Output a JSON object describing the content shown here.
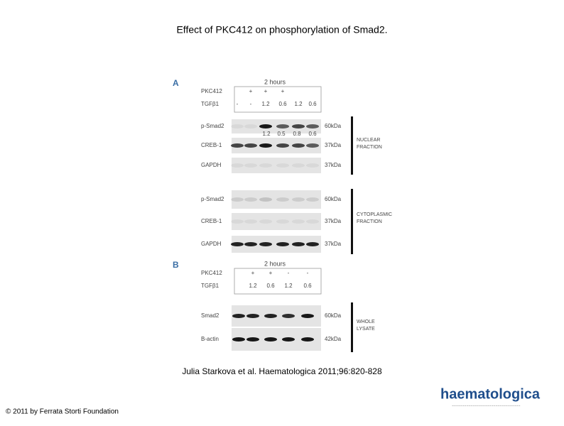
{
  "title": "Effect of PKC412 on phosphorylation of Smad2.",
  "panel_a": {
    "label": "A",
    "time": "2 hours",
    "rows": [
      {
        "name": "PKC412",
        "cells": [
          null,
          "+",
          "+",
          "+",
          null,
          null
        ]
      },
      {
        "name": "TGFβ1",
        "cells": [
          "-",
          "-",
          "1.2",
          "0.6",
          "1.2",
          "0.6"
        ]
      }
    ],
    "nuclear": {
      "blots": [
        {
          "name": "p-Smad2",
          "size": "60kDa",
          "quant": [
            "1.2",
            "0.5",
            "0.8",
            "0.6"
          ]
        },
        {
          "name": "CREB-1",
          "size": "37kDa"
        },
        {
          "name": "GAPDH",
          "size": "37kDa"
        }
      ],
      "fraction": [
        "NUCLEAR",
        "FRACTION"
      ]
    },
    "cytoplasmic": {
      "blots": [
        {
          "name": "p-Smad2",
          "size": "60kDa"
        },
        {
          "name": "CREB-1",
          "size": "37kDa"
        },
        {
          "name": "GAPDH",
          "size": "37kDa"
        }
      ],
      "fraction": [
        "CYTOPLASMIC",
        "FRACTION"
      ]
    }
  },
  "panel_b": {
    "label": "B",
    "time": "2 hours",
    "rows": [
      {
        "name": "PKC412",
        "cells": [
          null,
          "+",
          "+",
          "-",
          "-"
        ]
      },
      {
        "name": "TGFβ1",
        "cells": [
          null,
          "1.2",
          "0.6",
          "1.2",
          "0.6"
        ]
      }
    ],
    "blots": [
      {
        "name": "Smad2",
        "size": "60kDa"
      },
      {
        "name": "B-actin",
        "size": "42kDa"
      }
    ],
    "fraction": [
      "WHOLE",
      "LYSATE"
    ]
  },
  "citation": "Julia Starkova et al. Haematologica 2011;96:820-828",
  "footer": "© 2011 by Ferrata Storti Foundation",
  "logo": "haematologica"
}
